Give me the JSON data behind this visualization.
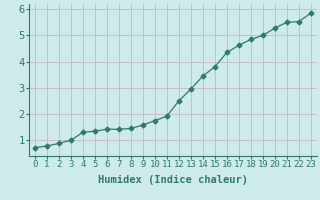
{
  "x": [
    0,
    1,
    2,
    3,
    4,
    5,
    6,
    7,
    8,
    9,
    10,
    11,
    12,
    13,
    14,
    15,
    16,
    17,
    18,
    19,
    20,
    21,
    22,
    23
  ],
  "y": [
    0.72,
    0.78,
    0.88,
    1.0,
    1.3,
    1.35,
    1.42,
    1.42,
    1.45,
    1.58,
    1.75,
    1.92,
    2.5,
    2.95,
    3.45,
    3.8,
    4.35,
    4.62,
    4.85,
    5.0,
    5.28,
    5.5,
    5.53,
    5.85
  ],
  "line_color": "#2d7b6d",
  "marker": "D",
  "marker_size": 2.5,
  "bg_color": "#ceeaea",
  "grid_color": "#c8b8b8",
  "xlabel": "Humidex (Indice chaleur)",
  "xlabel_fontsize": 7.5,
  "ytick_fontsize": 7.5,
  "xtick_fontsize": 6.5,
  "ylim": [
    0.4,
    6.2
  ],
  "xlim": [
    -0.5,
    23.5
  ],
  "yticks": [
    1,
    2,
    3,
    4,
    5,
    6
  ],
  "xticks": [
    0,
    1,
    2,
    3,
    4,
    5,
    6,
    7,
    8,
    9,
    10,
    11,
    12,
    13,
    14,
    15,
    16,
    17,
    18,
    19,
    20,
    21,
    22,
    23
  ]
}
